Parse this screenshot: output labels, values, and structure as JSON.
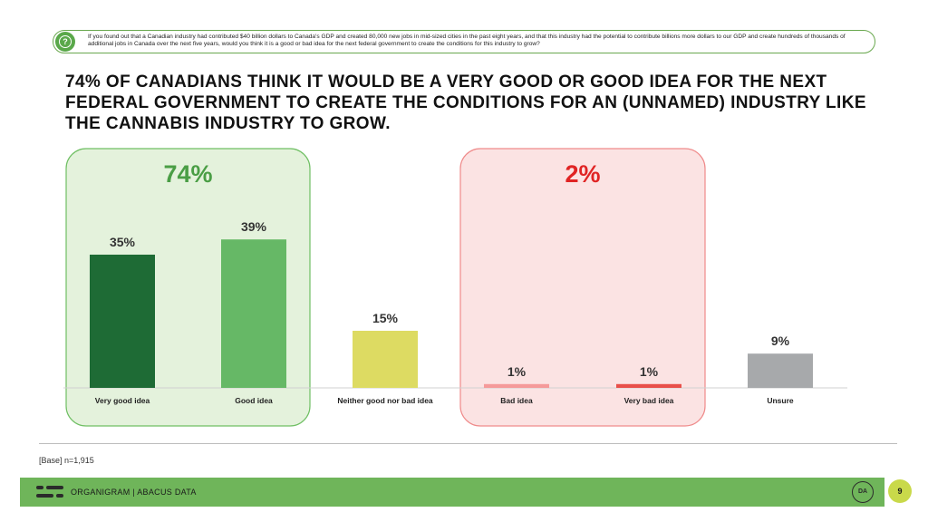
{
  "question": "If you found out that a Canadian industry had contributed $40 billion dollars to Canada's GDP and created 80,000 new jobs in mid-sized cities in the past eight years, and that this industry had the potential to contribute billions more dollars to our GDP and create hundreds of thousands of additional jobs in Canada over the next five years, would you think it is a good or bad idea for the next federal government to create the conditions for this industry to grow?",
  "headline": "74% OF CANADIANS THINK IT WOULD BE A VERY GOOD OR GOOD IDEA FOR THE NEXT FEDERAL GOVERNMENT TO CREATE THE CONDITIONS FOR AN (UNNAMED) INDUSTRY LIKE THE CANNABIS INDUSTRY TO GROW.",
  "chart_data": {
    "type": "bar",
    "categories": [
      "Very good idea",
      "Good idea",
      "Neither good nor bad idea",
      "Bad idea",
      "Very bad idea",
      "Unsure"
    ],
    "values": [
      35,
      39,
      15,
      1,
      1,
      9
    ],
    "value_labels": [
      "35%",
      "39%",
      "15%",
      "1%",
      "1%",
      "9%"
    ],
    "colors": [
      "#1e6b35",
      "#66b866",
      "#dddb62",
      "#f59a9a",
      "#e8504a",
      "#a7a9ab"
    ],
    "groups": [
      {
        "label": "74%",
        "color": "#4a9e45",
        "fill": "#e4f2dc",
        "border": "#6fbf63",
        "from": 0,
        "to": 1
      },
      {
        "label": "2%",
        "color": "#e02424",
        "fill": "#fbe3e3",
        "border": "#ef8a8a",
        "from": 3,
        "to": 4
      }
    ],
    "grid": false
  },
  "base_note": "[Base] n=1,915",
  "footer": {
    "brand": "ORGANIGRAM | ABACUS DATA",
    "badge": "DA",
    "page": "9",
    "bar_color": "#6fb55a"
  }
}
